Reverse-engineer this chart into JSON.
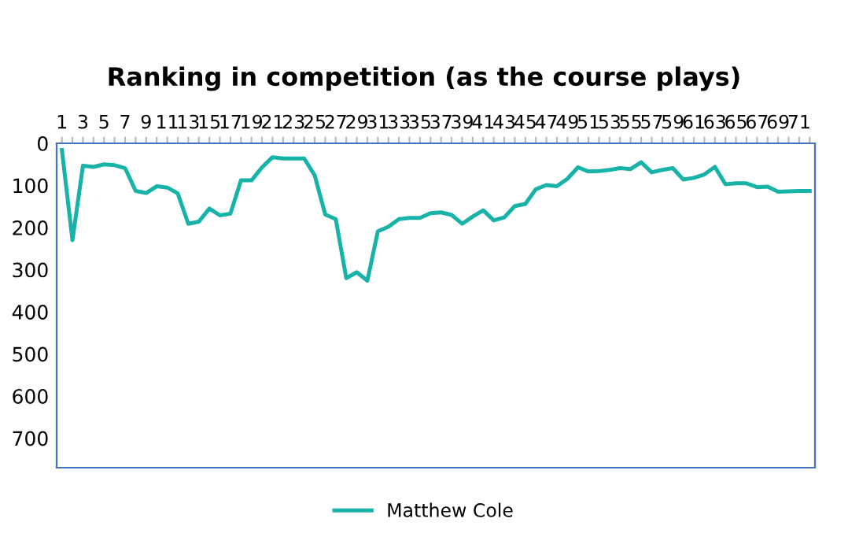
{
  "chart_data": {
    "type": "line",
    "title": "Ranking in competition (as the course plays)",
    "categories": [
      "1",
      null,
      "3",
      null,
      "5",
      null,
      "7",
      null,
      "9",
      null,
      "11",
      null,
      "13",
      null,
      "15",
      null,
      "17",
      null,
      "19",
      null,
      "21",
      null,
      "23",
      null,
      "25",
      null,
      "27",
      null,
      "29",
      null,
      "31",
      null,
      "33",
      null,
      "35",
      null,
      "37",
      null,
      "39",
      null,
      "41",
      null,
      "43",
      null,
      "45",
      null,
      "47",
      null,
      "49",
      null,
      "51",
      null,
      "53",
      null,
      "55",
      null,
      "57",
      null,
      "59",
      null,
      "61",
      null,
      "63",
      null,
      "65",
      null,
      "67",
      null,
      "69",
      null,
      "71",
      null
    ],
    "series": [
      {
        "name": "Matthew Cole",
        "color": "#17b2a8",
        "values": [
          16,
          230,
          53,
          56,
          50,
          52,
          59,
          113,
          118,
          102,
          105,
          119,
          191,
          186,
          155,
          171,
          167,
          88,
          88,
          57,
          33,
          36,
          36,
          36,
          76,
          169,
          180,
          320,
          306,
          326,
          209,
          198,
          180,
          177,
          177,
          166,
          164,
          170,
          191,
          174,
          159,
          183,
          176,
          149,
          144,
          109,
          99,
          102,
          84,
          57,
          67,
          66,
          63,
          59,
          61,
          45,
          69,
          63,
          59,
          86,
          82,
          74,
          56,
          97,
          95,
          95,
          104,
          103,
          115,
          114,
          113,
          113
        ]
      }
    ],
    "ylim": [
      770,
      0
    ],
    "yticks": [
      0,
      100,
      200,
      300,
      400,
      500,
      600,
      700
    ],
    "legend": "bottom",
    "grid": false,
    "marker": "none",
    "line_style": "solid"
  }
}
